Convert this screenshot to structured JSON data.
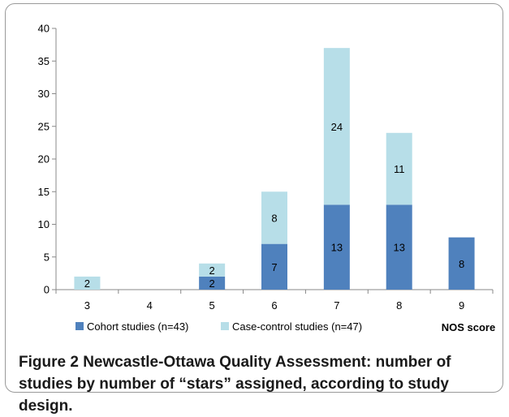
{
  "chart_data": {
    "type": "bar",
    "stacked": true,
    "categories": [
      "3",
      "4",
      "5",
      "6",
      "7",
      "8",
      "9"
    ],
    "series": [
      {
        "name": "Cohort studies (n=43)",
        "values": [
          0,
          0,
          2,
          7,
          13,
          13,
          8
        ],
        "labels": [
          "",
          "",
          "2",
          "7",
          "13",
          "13",
          "8"
        ],
        "color": "#4f81bd"
      },
      {
        "name": "Case-control studies (n=47)",
        "values": [
          2,
          0,
          2,
          8,
          24,
          11,
          0
        ],
        "labels": [
          "2",
          "",
          "2",
          "8",
          "24",
          "11",
          ""
        ],
        "color": "#b7dee8"
      }
    ],
    "xlabel": "NOS score",
    "ylabel": "",
    "ylim": [
      0,
      40
    ],
    "yticks": [
      "0",
      "5",
      "10",
      "15",
      "20",
      "25",
      "30",
      "35",
      "40"
    ],
    "grid": false,
    "legend_position": "bottom"
  },
  "caption": {
    "label": "Figure 2",
    "text": "Newcastle-Ottawa Quality Assessment: number of studies by number of “stars” assigned, according to study design."
  }
}
